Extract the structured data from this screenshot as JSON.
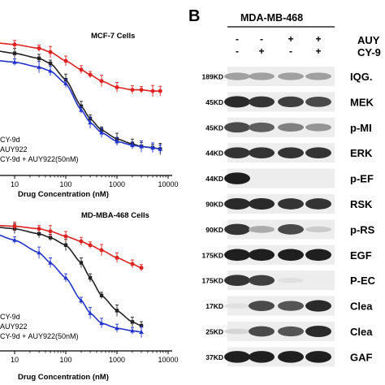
{
  "figure": {
    "panel_b_letter": "B",
    "cell_line": "MDA-MB-468",
    "treatment_rows": [
      {
        "label": "AUY",
        "signs": [
          "-",
          "-",
          "+",
          "+"
        ]
      },
      {
        "label": "CY-9",
        "signs": [
          "-",
          "+",
          "-",
          "+"
        ]
      }
    ],
    "blots": [
      {
        "mw": "189KD",
        "protein": "IQG.",
        "intensity": [
          0.35,
          0.35,
          0.35,
          0.35
        ]
      },
      {
        "mw": "45KD",
        "protein": "MEK",
        "intensity": [
          0.9,
          0.85,
          0.8,
          0.75
        ]
      },
      {
        "mw": "45KD",
        "protein": "p-MI",
        "intensity": [
          0.75,
          0.65,
          0.5,
          0.4
        ]
      },
      {
        "mw": "44KD",
        "protein": "ERK",
        "intensity": [
          0.85,
          0.85,
          0.85,
          0.85
        ]
      },
      {
        "mw": "44KD",
        "protein": "p-EF",
        "intensity": [
          0.95,
          0,
          0,
          0
        ]
      },
      {
        "mw": "90KD",
        "protein": "RSK",
        "intensity": [
          0.9,
          0.9,
          0.85,
          0.85
        ]
      },
      {
        "mw": "90KD",
        "protein": "p-RS",
        "intensity": [
          0.85,
          0.3,
          0.75,
          0.15
        ]
      },
      {
        "mw": "175KD",
        "protein": "EGF",
        "intensity": [
          0.95,
          0.95,
          0.95,
          0.95
        ]
      },
      {
        "mw": "175KD",
        "protein": "P-EC",
        "intensity": [
          0.85,
          0.8,
          0.05,
          0
        ]
      },
      {
        "mw": "17KD",
        "protein": "Clea",
        "intensity": [
          0.05,
          0.75,
          0.7,
          0.9
        ]
      },
      {
        "mw": "25KD",
        "protein": "Clea",
        "intensity": [
          0.1,
          0.75,
          0.7,
          0.9
        ]
      },
      {
        "mw": "37KD",
        "protein": "GAF",
        "intensity": [
          0.95,
          0.95,
          0.95,
          0.95
        ]
      }
    ]
  },
  "chart_data": [
    {
      "type": "line",
      "title": "MCF-7 Cells",
      "xlabel": "Drug Concentration (nM)",
      "ylabel": "",
      "x_scale": "log",
      "x_tick_labels": [
        "10",
        "100",
        "1000",
        "10000"
      ],
      "legend": [
        "CY-9d",
        "AUY922",
        "CY-9d + AUY922(50nM)"
      ],
      "legend_position": "bottom-left",
      "colors": [
        "#222222",
        "#dd2222",
        "#2233cc"
      ],
      "series": [
        {
          "name": "CY-9d",
          "color": "#222222",
          "x": [
            1,
            3,
            10,
            30,
            50,
            100,
            200,
            300,
            500,
            1000,
            2000,
            3000,
            5000,
            7000
          ],
          "y": [
            103,
            100,
            97,
            93,
            89,
            76,
            55,
            45,
            36,
            29,
            25,
            23,
            22,
            21
          ]
        },
        {
          "name": "AUY922",
          "color": "#dd2222",
          "x": [
            1,
            3,
            10,
            30,
            50,
            100,
            200,
            300,
            500,
            1000,
            2000,
            3000,
            5000,
            7000
          ],
          "y": [
            105,
            106,
            104,
            101,
            98,
            91,
            84,
            80,
            75,
            70,
            68,
            68,
            67,
            67
          ]
        },
        {
          "name": "CY-9d + AUY922(50nM)",
          "color": "#2233cc",
          "x": [
            1,
            3,
            10,
            30,
            50,
            100,
            200,
            300,
            500,
            1000,
            2000,
            3000,
            5000,
            7000
          ],
          "y": [
            95,
            92,
            90,
            86,
            83,
            73,
            52,
            42,
            34,
            27,
            24,
            23,
            22,
            21
          ]
        }
      ]
    },
    {
      "type": "line",
      "title": "MD-MBA-468 Cells",
      "xlabel": "Drug Concentration (nM)",
      "ylabel": "",
      "x_scale": "log",
      "x_tick_labels": [
        "10",
        "100",
        "1000",
        "10000"
      ],
      "legend": [
        "CY-9d",
        "AUY922",
        "CY-9d + AUY922(50nM)"
      ],
      "legend_position": "bottom-left",
      "colors": [
        "#222222",
        "#dd2222",
        "#2233cc"
      ],
      "series": [
        {
          "name": "CY-9d",
          "color": "#222222",
          "x": [
            1,
            3,
            10,
            30,
            50,
            100,
            200,
            300,
            500,
            1000,
            2000,
            3000
          ],
          "y": [
            100,
            99,
            97,
            93,
            90,
            84,
            70,
            58,
            44,
            32,
            23,
            20
          ]
        },
        {
          "name": "AUY922",
          "color": "#dd2222",
          "x": [
            1,
            3,
            10,
            30,
            50,
            100,
            200,
            300,
            500,
            1000,
            2000,
            3000
          ],
          "y": [
            100,
            100,
            99,
            97,
            95,
            91,
            87,
            84,
            80,
            74,
            69,
            66
          ]
        },
        {
          "name": "CY-9d + AUY922(50nM)",
          "color": "#2233cc",
          "x": [
            1,
            3,
            10,
            30,
            50,
            100,
            200,
            300,
            500,
            1000,
            2000,
            3000
          ],
          "y": [
            99,
            95,
            88,
            78,
            70,
            58,
            40,
            30,
            22,
            18,
            16,
            15
          ]
        }
      ]
    }
  ]
}
